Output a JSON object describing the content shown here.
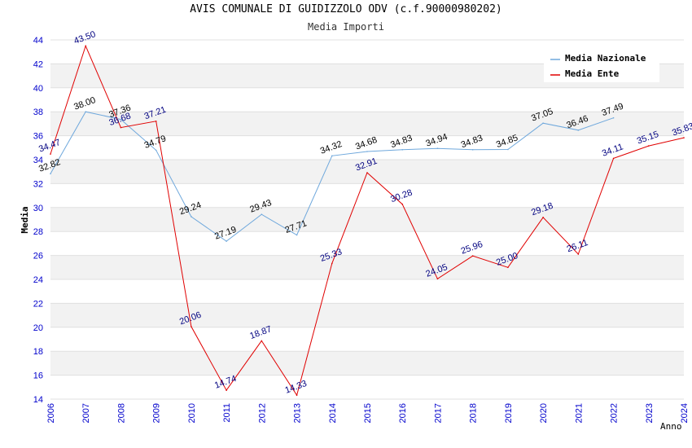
{
  "chart_data": {
    "type": "line",
    "title": "AVIS COMUNALE DI GUIDIZZOLO ODV (c.f.90000980202)",
    "subtitle": "Media Importi",
    "xlabel": "Anno",
    "ylabel": "Media",
    "ylim": [
      14,
      44
    ],
    "yticks": [
      14,
      16,
      18,
      20,
      22,
      24,
      26,
      28,
      30,
      32,
      34,
      36,
      38,
      40,
      42,
      44
    ],
    "x": [
      "2006",
      "2007",
      "2008",
      "2009",
      "2010",
      "2011",
      "2012",
      "2013",
      "2014",
      "2015",
      "2016",
      "2017",
      "2018",
      "2019",
      "2020",
      "2021",
      "2022",
      "2023",
      "2024"
    ],
    "grid": "horizontal alternating bands",
    "legend_position": "top-right",
    "series": [
      {
        "name": "Media Nazionale",
        "color": "#6fa8dc",
        "label_color": "#000000",
        "values": [
          32.82,
          38.0,
          37.36,
          34.79,
          29.24,
          27.19,
          29.43,
          27.71,
          34.32,
          34.68,
          34.83,
          34.94,
          34.83,
          34.85,
          37.05,
          36.46,
          37.49,
          null,
          null
        ],
        "labels": [
          "32.82",
          "38.00",
          "37.36",
          "34.79",
          "29.24",
          "27.19",
          "29.43",
          "27.71",
          "34.32",
          "34.68",
          "34.83",
          "34.94",
          "34.83",
          "34.85",
          "37.05",
          "36.46",
          "37.49",
          null,
          null
        ]
      },
      {
        "name": "Media Ente",
        "color": "#e00000",
        "label_color": "#000080",
        "values": [
          34.47,
          43.5,
          36.68,
          37.21,
          20.06,
          14.74,
          18.87,
          14.33,
          25.33,
          32.91,
          30.28,
          24.05,
          25.96,
          25.0,
          29.18,
          26.11,
          34.11,
          35.15,
          35.83
        ],
        "labels": [
          "34.47",
          "43.50",
          "36.68",
          "37.21",
          "20.06",
          "14.74",
          "18.87",
          "14.33",
          "25.33",
          "32.91",
          "30.28",
          "24.05",
          "25.96",
          "25.00",
          "29.18",
          "26.11",
          "34.11",
          "35.15",
          "35.83"
        ]
      }
    ]
  }
}
